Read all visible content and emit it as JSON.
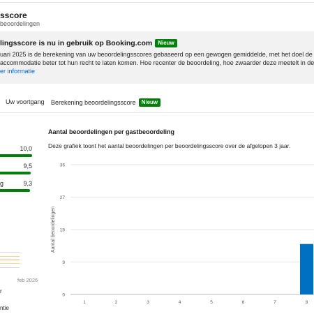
{
  "header": {
    "title": "sscore",
    "subtitle": "beoordelingen"
  },
  "banner": {
    "title": "lingsscore is nu in gebruik op Booking.com",
    "badge": "Nieuw",
    "line1": "uari 2025 is de berekening van uw beoordelingsscores gebaseerd op een gewogen gemiddelde, met het doel de m",
    "line2": "accommodatie beter tot hun recht te laten komen. Hoe recenter de beoordeling, hoe zwaarder deze meetelt in de u",
    "link": "er informatie"
  },
  "tabs": [
    {
      "label": "Uw voortgang"
    },
    {
      "label": "Berekening beoordelingsscore",
      "badge": "Nieuw"
    }
  ],
  "scores": [
    {
      "label": "",
      "value": "10,0",
      "fraction": 1.0
    },
    {
      "label": "",
      "value": "9,5",
      "fraction": 0.95
    },
    {
      "label": "g",
      "value": "9,3",
      "fraction": 0.93
    }
  ],
  "mini_chart": {
    "date_label": "feb 2026",
    "text1": "r",
    "text2": "ntie"
  },
  "colors": {
    "accent_green": "#008009",
    "link_blue": "#006ce4",
    "bar_blue": "#0071c2"
  },
  "main_chart": {
    "title": "Aantal beoordelingen per gastbeoordeling",
    "description": "Deze grafiek toont het aantal beoordelingen per beoordelingsscore over de afgelopen 3 jaar."
  },
  "chart_data": {
    "type": "bar",
    "title": "Aantal beoordelingen per gastbeoordeling",
    "ylabel": "Aantal beoordelingen",
    "xlabel": "",
    "categories": [
      "1",
      "2",
      "3",
      "4",
      "5",
      "6",
      "7",
      "8"
    ],
    "values": [
      0,
      0,
      0,
      0,
      0,
      0,
      0,
      14
    ],
    "yticks": [
      0,
      9,
      18,
      27,
      36
    ],
    "ylim": [
      0,
      36
    ],
    "grid": true
  }
}
